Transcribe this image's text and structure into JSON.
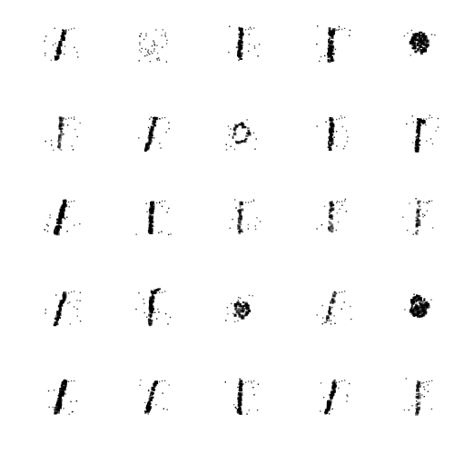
{
  "figure": {
    "rows": 5,
    "cols": 5,
    "background_color": "#ffffff",
    "ink_color": "#000000",
    "samples": [
      {
        "glyph": "1",
        "style": "slanted"
      },
      {
        "glyph": "noise",
        "style": "scattered"
      },
      {
        "glyph": "1",
        "style": "upright"
      },
      {
        "glyph": "1",
        "style": "blotchy"
      },
      {
        "glyph": "0",
        "style": "dense-blob"
      },
      {
        "glyph": "1",
        "style": "faint"
      },
      {
        "glyph": "1",
        "style": "slanted"
      },
      {
        "glyph": "0",
        "style": "loop"
      },
      {
        "glyph": "1",
        "style": "upright"
      },
      {
        "glyph": "1",
        "style": "hooked"
      },
      {
        "glyph": "1",
        "style": "slanted-heavy"
      },
      {
        "glyph": "1",
        "style": "upright"
      },
      {
        "glyph": "1",
        "style": "faint"
      },
      {
        "glyph": "1",
        "style": "faint"
      },
      {
        "glyph": "1",
        "style": "upright-faint"
      },
      {
        "glyph": "1",
        "style": "slanted"
      },
      {
        "glyph": "1",
        "style": "flagged"
      },
      {
        "glyph": "noise",
        "style": "cluster"
      },
      {
        "glyph": "1",
        "style": "slanted-faint"
      },
      {
        "glyph": "0",
        "style": "dense-blob"
      },
      {
        "glyph": "1",
        "style": "slanted-heavy"
      },
      {
        "glyph": "1",
        "style": "slanted"
      },
      {
        "glyph": "1",
        "style": "upright"
      },
      {
        "glyph": "1",
        "style": "slanted"
      },
      {
        "glyph": "1",
        "style": "faint"
      }
    ]
  }
}
